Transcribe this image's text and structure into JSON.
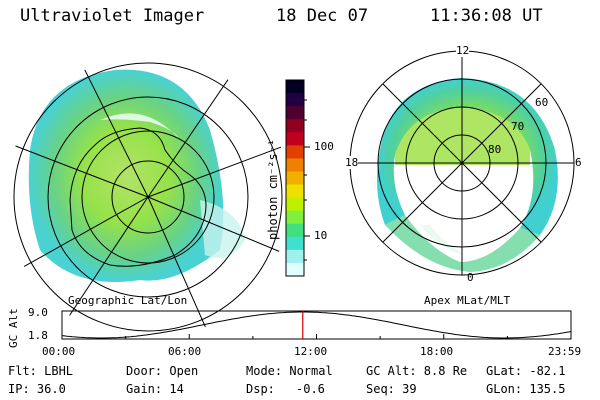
{
  "header": {
    "title": "Ultraviolet Imager",
    "date": "18 Dec 07",
    "time": "11:36:08 UT"
  },
  "left_panel": {
    "label": "Geographic Lat/Lon"
  },
  "colorbar": {
    "unit_label": "photon cm⁻²s⁻¹",
    "ticks": [
      "100",
      "10"
    ],
    "colors": [
      "#000020",
      "#200040",
      "#500030",
      "#900020",
      "#c00020",
      "#e04000",
      "#f08000",
      "#f0b000",
      "#f0e000",
      "#c0f000",
      "#80f040",
      "#40e080",
      "#40e0d0",
      "#a0f0f0",
      "#e0ffff"
    ]
  },
  "right_panel": {
    "label": "Apex MLat/MLT",
    "mlt_labels": {
      "top": "12",
      "bottom": "0",
      "left": "18",
      "right": "6"
    },
    "mlat_labels": [
      "60",
      "70",
      "80"
    ]
  },
  "altitude_plot": {
    "ylabel": "GC Alt",
    "yticks": [
      "9.0",
      "1.8"
    ],
    "xticks": [
      "00:00",
      "06:00",
      "12:00",
      "18:00",
      "23:59"
    ],
    "current_time_fraction": 0.473
  },
  "info": {
    "filter": "Flt: LBHL",
    "door": "Door: Open",
    "mode": "Mode: Normal",
    "gc_alt": "GC Alt: 8.8 Re",
    "glat": "GLat: -82.1",
    "ip": "IP: 36.0",
    "gain": "Gain: 14",
    "dsp_label": "Dsp:",
    "dsp_value": "-0.6",
    "seq": "Seq: 39",
    "glon": "GLon: 135.5"
  }
}
